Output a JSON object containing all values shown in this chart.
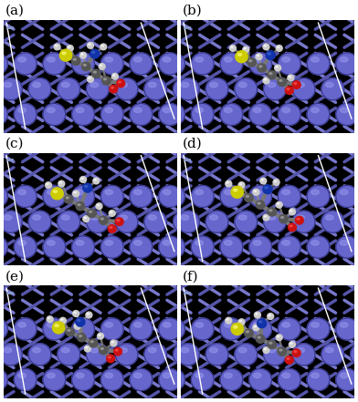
{
  "labels": [
    "(a)",
    "(b)",
    "(c)",
    "(d)",
    "(e)",
    "(f)"
  ],
  "nrows": 3,
  "ncols": 2,
  "bg_color": "#ffffff",
  "fe_sphere_color": "#6666cc",
  "fe_sphere_highlight": "#9999ee",
  "lattice_color1": "#7777cc",
  "lattice_color2": "#5555aa",
  "panel_bg": "#000000",
  "label_fontsize": 11,
  "label_color": "black",
  "figsize": [
    3.92,
    4.41
  ],
  "dpi": 100
}
